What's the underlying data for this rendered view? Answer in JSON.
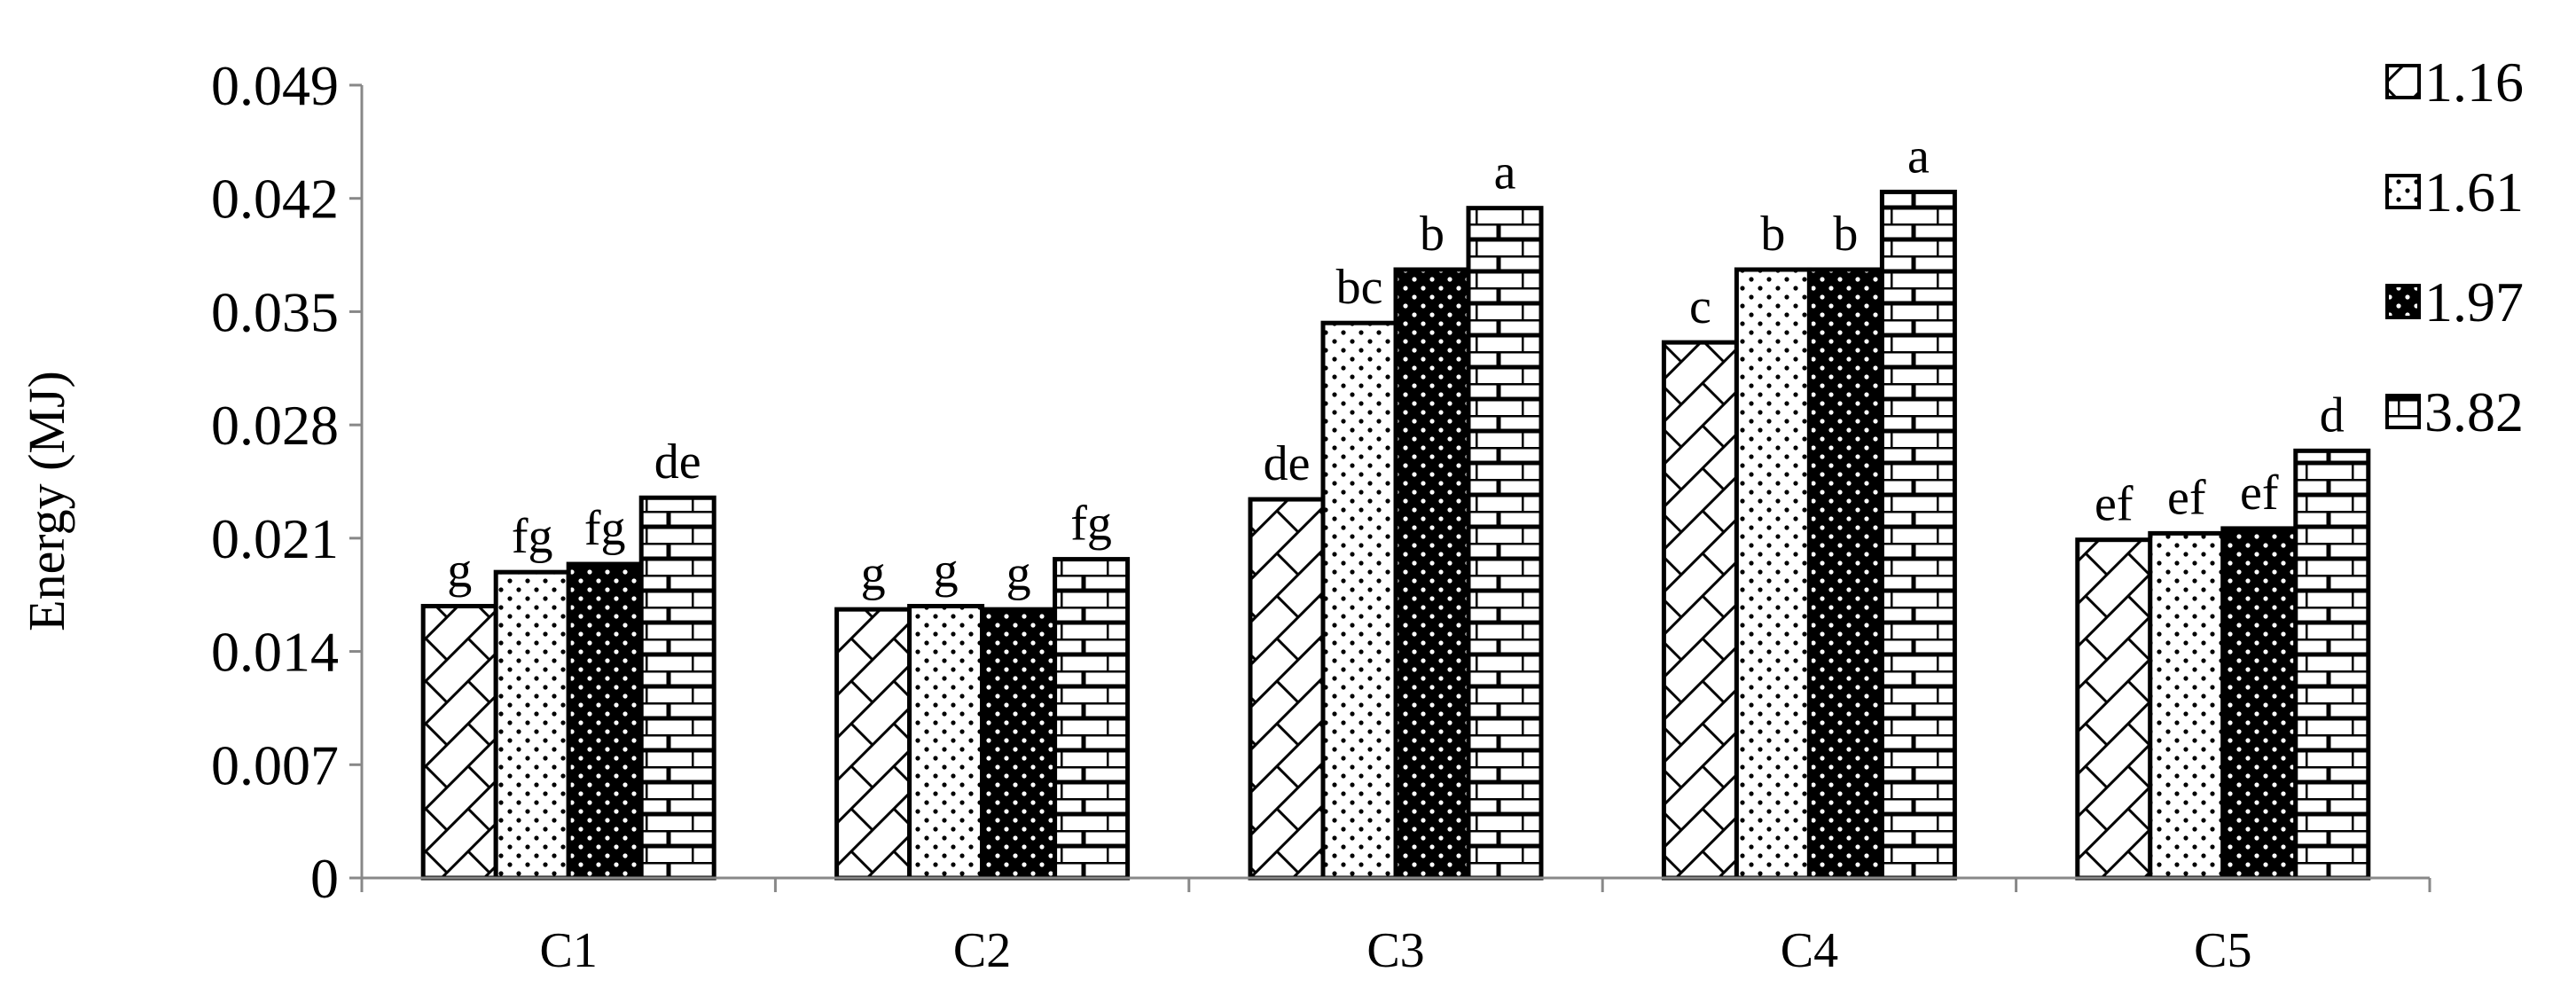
{
  "chart_data": {
    "type": "bar",
    "title": "",
    "xlabel": "",
    "ylabel": "Energy (MJ)",
    "ylim": [
      0,
      0.049
    ],
    "yticks": [
      "0",
      "0.007",
      "0.014",
      "0.021",
      "0.028",
      "0.035",
      "0.042",
      "0.049"
    ],
    "grid": false,
    "legend_position": "right",
    "categories": [
      "C1",
      "C2",
      "C3",
      "C4",
      "C5"
    ],
    "series": [
      {
        "name": "1.16",
        "pattern": "diagonal-cross",
        "values": [
          0.0168,
          0.0166,
          0.0234,
          0.0331,
          0.0209
        ]
      },
      {
        "name": "1.61",
        "pattern": "dots",
        "values": [
          0.0189,
          0.0168,
          0.0343,
          0.0376,
          0.0213
        ]
      },
      {
        "name": "1.97",
        "pattern": "dark-dots",
        "values": [
          0.0194,
          0.0166,
          0.0376,
          0.0376,
          0.0216
        ]
      },
      {
        "name": "3.82",
        "pattern": "brick",
        "values": [
          0.0235,
          0.0197,
          0.0414,
          0.0424,
          0.0264
        ]
      }
    ],
    "bar_labels": [
      [
        "g",
        "fg",
        "fg",
        "de"
      ],
      [
        "g",
        "g",
        "g",
        "fg"
      ],
      [
        "de",
        "bc",
        "b",
        "a"
      ],
      [
        "c",
        "b",
        "b",
        "a"
      ],
      [
        "ef",
        "ef",
        "ef",
        "d"
      ]
    ]
  }
}
